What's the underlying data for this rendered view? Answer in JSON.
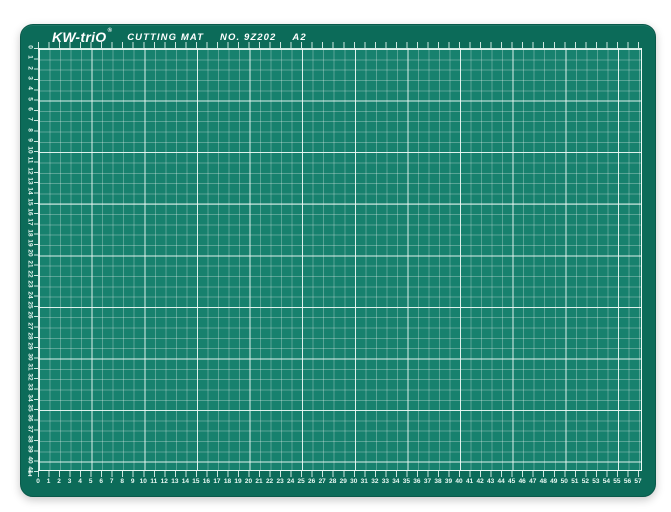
{
  "product": {
    "brand": "KW-triO",
    "brand_mark": "®",
    "label": "CUTTING MAT",
    "model": "NO. 9Z202",
    "size": "A2"
  },
  "colors": {
    "mat_border_green": "#0c6b59",
    "mat_surface_teal": "#17816e",
    "grid_minor_line": "rgba(255,255,255,0.28)",
    "grid_major_line": "#f0fcf8",
    "ruler_text": "#eafaf4",
    "background": "#ffffff"
  },
  "icons": {
    "scale_end_arrow": "↥"
  },
  "rulers": {
    "bottom": {
      "values": [
        0,
        1,
        2,
        3,
        4,
        5,
        6,
        7,
        8,
        9,
        10,
        11,
        12,
        13,
        14,
        15,
        16,
        17,
        18,
        19,
        20,
        21,
        22,
        23,
        24,
        25,
        26,
        27,
        28,
        29,
        30,
        31,
        32,
        33,
        34,
        35,
        36,
        37,
        38,
        39,
        40,
        41,
        42,
        43,
        44,
        45,
        46,
        47,
        48,
        49,
        50,
        51,
        52,
        53,
        54,
        55,
        56,
        57
      ]
    },
    "left": {
      "values": [
        0,
        1,
        2,
        3,
        4,
        5,
        6,
        7,
        8,
        9,
        10,
        11,
        12,
        13,
        14,
        15,
        16,
        17,
        18,
        19,
        20,
        21,
        22,
        23,
        24,
        25,
        26,
        27,
        28,
        29,
        30,
        31,
        32,
        33,
        34,
        35,
        36,
        37,
        38,
        39,
        40,
        41
      ]
    }
  }
}
